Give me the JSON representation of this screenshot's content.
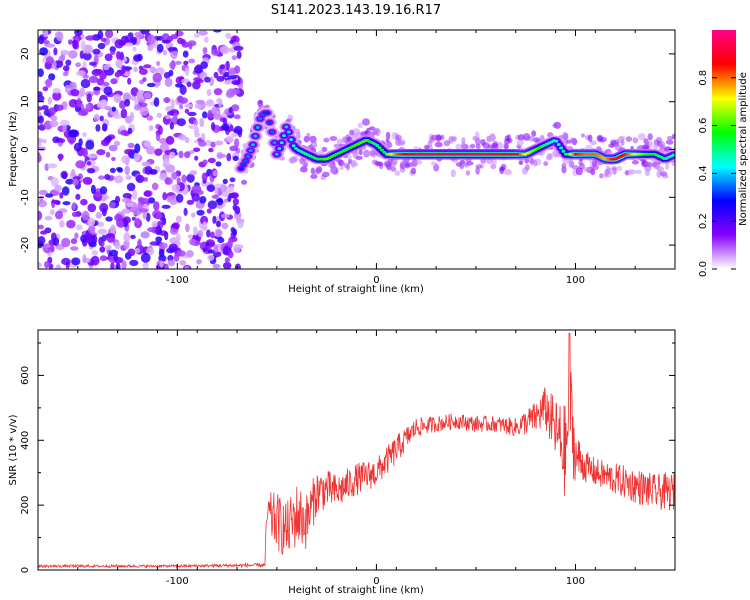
{
  "title": "S141.2023.143.19.16.R17",
  "colors": {
    "snr_line": "#ee3333",
    "frame": "#000000",
    "background": "#ffffff"
  },
  "chart_data": [
    {
      "type": "heatmap",
      "name": "spectrogram",
      "xlabel": "Height of straight line (km)",
      "ylabel": "Frequency (Hz)",
      "xlim": [
        -170,
        150
      ],
      "ylim": [
        -25,
        25
      ],
      "xticks": [
        -100,
        0,
        100
      ],
      "yticks": [
        -20,
        -10,
        0,
        10,
        20
      ],
      "xtick_labels": [
        "-100",
        "0",
        "100"
      ],
      "ytick_labels": [
        "-20",
        "-10",
        "0",
        "10",
        "20"
      ],
      "colorbar": {
        "label": "Normalized spectral amplitude",
        "range": [
          0,
          1
        ],
        "ticks": [
          0.0,
          0.2,
          0.4,
          0.6,
          0.8
        ],
        "tick_labels": [
          "0.0",
          "0.2",
          "0.4",
          "0.6",
          "0.8"
        ],
        "colormap": [
          "#ffffff",
          "#8800ff",
          "#0000ff",
          "#00ffff",
          "#00ff00",
          "#ffff00",
          "#ff0000",
          "#ff0088"
        ]
      },
      "noise_region_x": [
        -170,
        -68
      ],
      "ridge": {
        "x": [
          -68,
          -65,
          -62,
          -60,
          -58,
          -55,
          -52,
          -50,
          -47,
          -45,
          -42,
          -40,
          -35,
          -30,
          -25,
          -20,
          -15,
          -10,
          -5,
          0,
          5,
          10,
          20,
          40,
          60,
          70,
          75,
          80,
          85,
          90,
          95,
          100,
          105,
          110,
          115,
          120,
          125,
          130,
          135,
          140,
          145,
          150
        ],
        "y": [
          -4,
          -2,
          1,
          4,
          7,
          8,
          3,
          -1,
          2,
          5,
          1,
          0,
          -1,
          -2,
          -2,
          -1,
          0,
          1,
          2,
          1,
          -1,
          -1,
          -1,
          -1,
          -1,
          -1,
          -1,
          0,
          1,
          2,
          -1,
          -1,
          -1,
          -1,
          -2,
          -2,
          -1,
          -1,
          -1,
          -1,
          -2,
          -1
        ],
        "amplitude": [
          0.3,
          0.35,
          0.4,
          0.4,
          0.35,
          0.3,
          0.35,
          0.4,
          0.45,
          0.4,
          0.45,
          0.5,
          0.5,
          0.55,
          0.6,
          0.55,
          0.55,
          0.6,
          0.6,
          0.5,
          0.6,
          0.8,
          0.95,
          0.95,
          0.95,
          0.9,
          0.7,
          0.6,
          0.5,
          0.45,
          0.5,
          0.85,
          0.8,
          0.8,
          0.75,
          0.9,
          0.85,
          0.7,
          0.6,
          0.55,
          0.5,
          0.45
        ]
      }
    },
    {
      "type": "line",
      "name": "snr",
      "xlabel": "Height of straight line (km)",
      "ylabel": "SNR (10 * v/v)",
      "xlim": [
        -170,
        150
      ],
      "ylim": [
        0,
        740
      ],
      "xticks": [
        -100,
        0,
        100
      ],
      "yticks": [
        0,
        200,
        400,
        600
      ],
      "xtick_labels": [
        "-100",
        "0",
        "100"
      ],
      "ytick_labels": [
        "0",
        "200",
        "400",
        "600"
      ],
      "envelope": {
        "x": [
          -170,
          -100,
          -56,
          -55,
          -50,
          -45,
          -40,
          -35,
          -30,
          -25,
          -20,
          -10,
          0,
          10,
          20,
          30,
          40,
          50,
          60,
          70,
          80,
          85,
          90,
          95,
          97,
          100,
          105,
          110,
          120,
          130,
          140,
          150
        ],
        "y": [
          12,
          12,
          15,
          170,
          150,
          120,
          170,
          150,
          240,
          250,
          240,
          280,
          300,
          370,
          440,
          450,
          460,
          450,
          450,
          440,
          470,
          500,
          430,
          360,
          500,
          350,
          320,
          300,
          280,
          260,
          240,
          240
        ],
        "noise": [
          4,
          4,
          6,
          70,
          90,
          90,
          100,
          90,
          70,
          60,
          55,
          50,
          45,
          45,
          30,
          25,
          25,
          25,
          25,
          30,
          50,
          70,
          100,
          150,
          200,
          80,
          50,
          45,
          50,
          55,
          55,
          60
        ]
      },
      "peak": {
        "x": 97,
        "y": 730
      }
    }
  ]
}
